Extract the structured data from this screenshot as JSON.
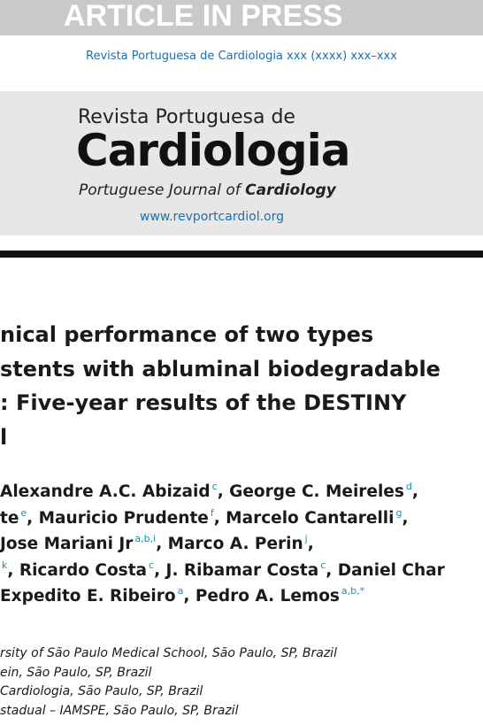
{
  "banner": "ARTICLE IN PRESS",
  "journal_line": "Revista Portuguesa de Cardiologia xxx (xxxx) xxx–xxx",
  "logo": {
    "line1": "Revista Portuguesa de",
    "line2": "Cardiologia",
    "line3a": "Portuguese Journal of",
    "line3b": "Cardiology",
    "url": "www.revportcardiol.org"
  },
  "title": [
    "nical performance of two types",
    "stents with abluminal biodegradable",
    ": Five-year results of the DESTINY",
    "l"
  ],
  "authors": [
    [
      {
        "text": "Alexandre A.C. Abizaid",
        "sup": "c"
      },
      {
        "text": ", George C. Meireles",
        "sup": "d"
      },
      {
        "text": ","
      }
    ],
    [
      {
        "text": "te",
        "sup": "e"
      },
      {
        "text": ", Mauricio Prudente",
        "sup": "f"
      },
      {
        "text": ", Marcelo Cantarelli",
        "sup": "g"
      },
      {
        "text": ","
      }
    ],
    [
      {
        "text": "Jose Mariani Jr",
        "sup": "a,b,i"
      },
      {
        "text": ", Marco A. Perin",
        "sup": "j"
      },
      {
        "text": ","
      }
    ],
    [
      {
        "sup": "k"
      },
      {
        "text": ", Ricardo Costa",
        "sup": "c"
      },
      {
        "text": ", J. Ribamar Costa",
        "sup": "c"
      },
      {
        "text": ", Daniel Char"
      }
    ],
    [
      {
        "text": "Expedito E. Ribeiro",
        "sup": "a"
      },
      {
        "text": ", Pedro A. Lemos",
        "sup": "a,b,*"
      }
    ]
  ],
  "affiliations": [
    "rsity of São Paulo Medical School, São Paulo, SP, Brazil",
    "ein, São Paulo, SP, Brazil",
    "Cardiologia, São Paulo, SP, Brazil",
    "stadual – IAMSPE, São Paulo, SP, Brazil"
  ]
}
